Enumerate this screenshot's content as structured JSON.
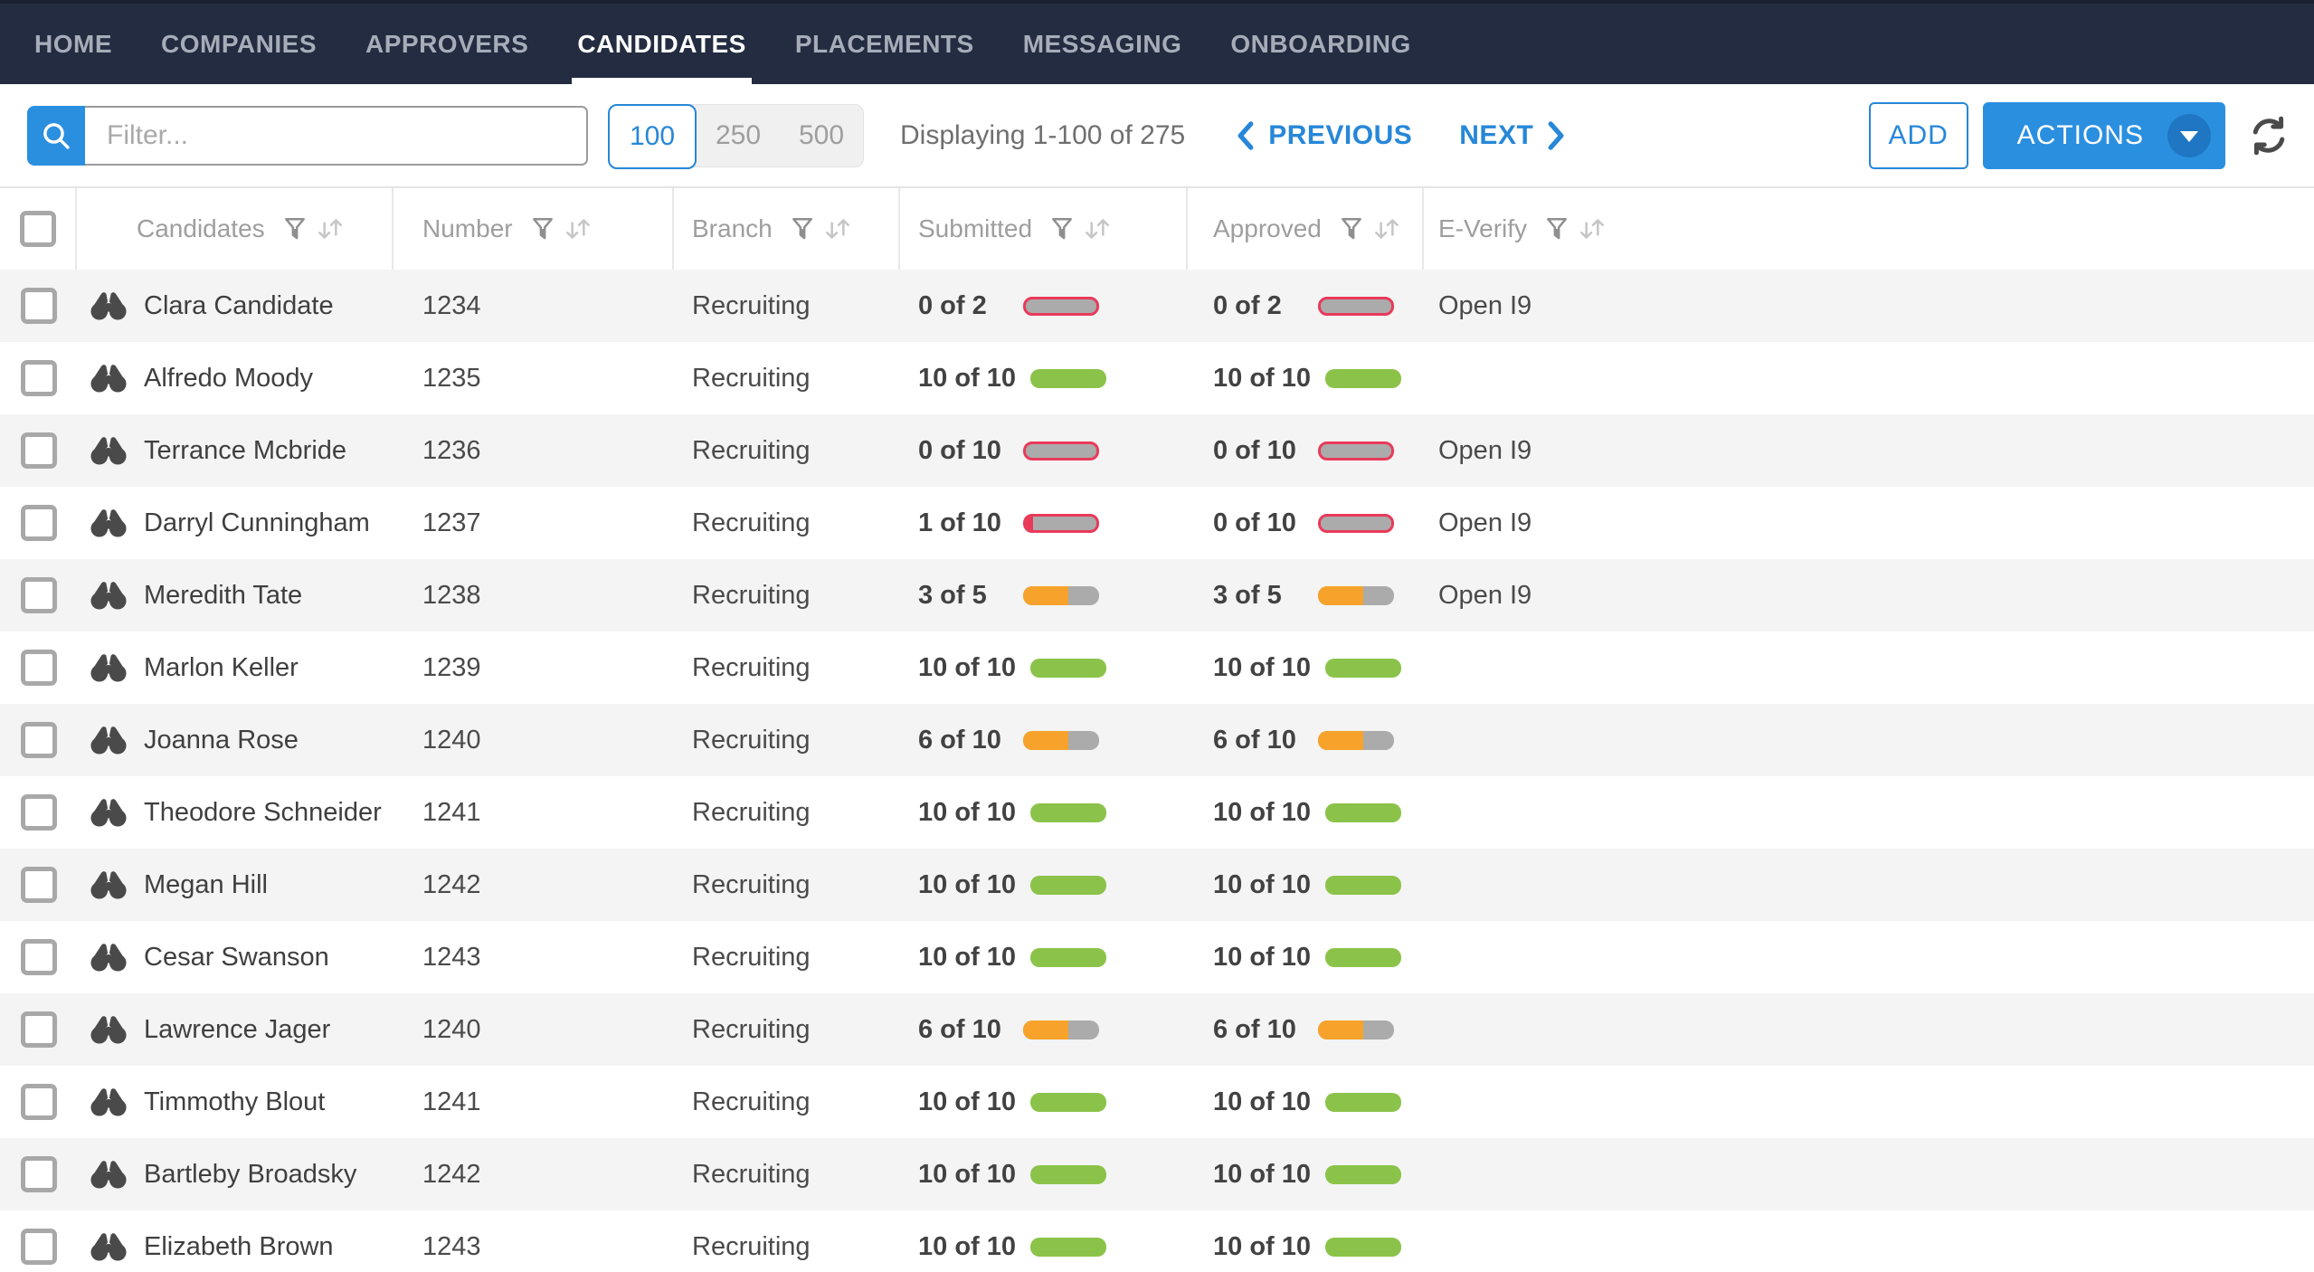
{
  "nav": {
    "items": [
      {
        "label": "HOME",
        "active": false
      },
      {
        "label": "COMPANIES",
        "active": false
      },
      {
        "label": "APPROVERS",
        "active": false
      },
      {
        "label": "CANDIDATES",
        "active": true
      },
      {
        "label": "PLACEMENTS",
        "active": false
      },
      {
        "label": "MESSAGING",
        "active": false
      },
      {
        "label": "ONBOARDING",
        "active": false
      }
    ]
  },
  "toolbar": {
    "filter_placeholder": "Filter...",
    "page_sizes": [
      {
        "label": "100",
        "selected": true
      },
      {
        "label": "250",
        "selected": false
      },
      {
        "label": "500",
        "selected": false
      }
    ],
    "displaying": "Displaying 1-100 of 275",
    "previous_label": "PREVIOUS",
    "next_label": "NEXT",
    "add_label": "ADD",
    "actions_label": "ACTIONS"
  },
  "table": {
    "columns": [
      {
        "label": "Candidates",
        "has_filter": true,
        "has_sort": true
      },
      {
        "label": "Number",
        "has_filter": true,
        "has_sort": true
      },
      {
        "label": "Branch",
        "has_filter": true,
        "has_sort": true
      },
      {
        "label": "Submitted",
        "has_filter": true,
        "has_sort": true
      },
      {
        "label": "Approved",
        "has_filter": true,
        "has_sort": true
      },
      {
        "label": "E-Verify",
        "has_filter": true,
        "has_sort": true
      }
    ],
    "rows": [
      {
        "name": "Clara Candidate",
        "number": "1234",
        "branch": "Recruiting",
        "submitted": {
          "label": "0 of 2",
          "value": 0,
          "total": 2,
          "status": "empty"
        },
        "approved": {
          "label": "0 of 2",
          "value": 0,
          "total": 2,
          "status": "empty"
        },
        "everify": "Open I9"
      },
      {
        "name": "Alfredo Moody",
        "number": "1235",
        "branch": "Recruiting",
        "submitted": {
          "label": "10 of 10",
          "value": 10,
          "total": 10,
          "status": "complete"
        },
        "approved": {
          "label": "10 of 10",
          "value": 10,
          "total": 10,
          "status": "complete"
        },
        "everify": ""
      },
      {
        "name": "Terrance Mcbride",
        "number": "1236",
        "branch": "Recruiting",
        "submitted": {
          "label": "0 of 10",
          "value": 0,
          "total": 10,
          "status": "empty"
        },
        "approved": {
          "label": "0 of 10",
          "value": 0,
          "total": 10,
          "status": "empty"
        },
        "everify": "Open I9"
      },
      {
        "name": "Darryl Cunningham",
        "number": "1237",
        "branch": "Recruiting",
        "submitted": {
          "label": "1 of 10",
          "value": 1,
          "total": 10,
          "status": "low"
        },
        "approved": {
          "label": "0 of 10",
          "value": 0,
          "total": 10,
          "status": "empty"
        },
        "everify": "Open I9"
      },
      {
        "name": "Meredith Tate",
        "number": "1238",
        "branch": "Recruiting",
        "submitted": {
          "label": "3 of 5",
          "value": 3,
          "total": 5,
          "status": "partial"
        },
        "approved": {
          "label": "3 of 5",
          "value": 3,
          "total": 5,
          "status": "partial"
        },
        "everify": "Open I9"
      },
      {
        "name": "Marlon Keller",
        "number": "1239",
        "branch": "Recruiting",
        "submitted": {
          "label": "10 of 10",
          "value": 10,
          "total": 10,
          "status": "complete"
        },
        "approved": {
          "label": "10 of 10",
          "value": 10,
          "total": 10,
          "status": "complete"
        },
        "everify": ""
      },
      {
        "name": "Joanna Rose",
        "number": "1240",
        "branch": "Recruiting",
        "submitted": {
          "label": "6 of 10",
          "value": 6,
          "total": 10,
          "status": "partial"
        },
        "approved": {
          "label": "6 of 10",
          "value": 6,
          "total": 10,
          "status": "partial"
        },
        "everify": ""
      },
      {
        "name": "Theodore Schneider",
        "number": "1241",
        "branch": "Recruiting",
        "submitted": {
          "label": "10 of 10",
          "value": 10,
          "total": 10,
          "status": "complete"
        },
        "approved": {
          "label": "10 of 10",
          "value": 10,
          "total": 10,
          "status": "complete"
        },
        "everify": ""
      },
      {
        "name": "Megan Hill",
        "number": "1242",
        "branch": "Recruiting",
        "submitted": {
          "label": "10 of 10",
          "value": 10,
          "total": 10,
          "status": "complete"
        },
        "approved": {
          "label": "10 of 10",
          "value": 10,
          "total": 10,
          "status": "complete"
        },
        "everify": ""
      },
      {
        "name": "Cesar Swanson",
        "number": "1243",
        "branch": "Recruiting",
        "submitted": {
          "label": "10 of 10",
          "value": 10,
          "total": 10,
          "status": "complete"
        },
        "approved": {
          "label": "10 of 10",
          "value": 10,
          "total": 10,
          "status": "complete"
        },
        "everify": ""
      },
      {
        "name": "Lawrence Jager",
        "number": "1240",
        "branch": "Recruiting",
        "submitted": {
          "label": "6 of 10",
          "value": 6,
          "total": 10,
          "status": "partial"
        },
        "approved": {
          "label": "6 of 10",
          "value": 6,
          "total": 10,
          "status": "partial"
        },
        "everify": ""
      },
      {
        "name": "Timmothy Blout",
        "number": "1241",
        "branch": "Recruiting",
        "submitted": {
          "label": "10 of 10",
          "value": 10,
          "total": 10,
          "status": "complete"
        },
        "approved": {
          "label": "10 of 10",
          "value": 10,
          "total": 10,
          "status": "complete"
        },
        "everify": ""
      },
      {
        "name": "Bartleby Broadsky",
        "number": "1242",
        "branch": "Recruiting",
        "submitted": {
          "label": "10 of 10",
          "value": 10,
          "total": 10,
          "status": "complete"
        },
        "approved": {
          "label": "10 of 10",
          "value": 10,
          "total": 10,
          "status": "complete"
        },
        "everify": ""
      },
      {
        "name": "Elizabeth Brown",
        "number": "1243",
        "branch": "Recruiting",
        "submitted": {
          "label": "10 of 10",
          "value": 10,
          "total": 10,
          "status": "complete"
        },
        "approved": {
          "label": "10 of 10",
          "value": 10,
          "total": 10,
          "status": "complete"
        },
        "everify": ""
      }
    ]
  },
  "colors": {
    "accent_blue": "#2b8fe0",
    "link_blue": "#2787d8",
    "complete_green": "#8bc34a",
    "partial_orange": "#f7a32b",
    "alert_red": "#e93a5a",
    "bar_gray": "#ababab",
    "nav_background": "#232c40"
  }
}
